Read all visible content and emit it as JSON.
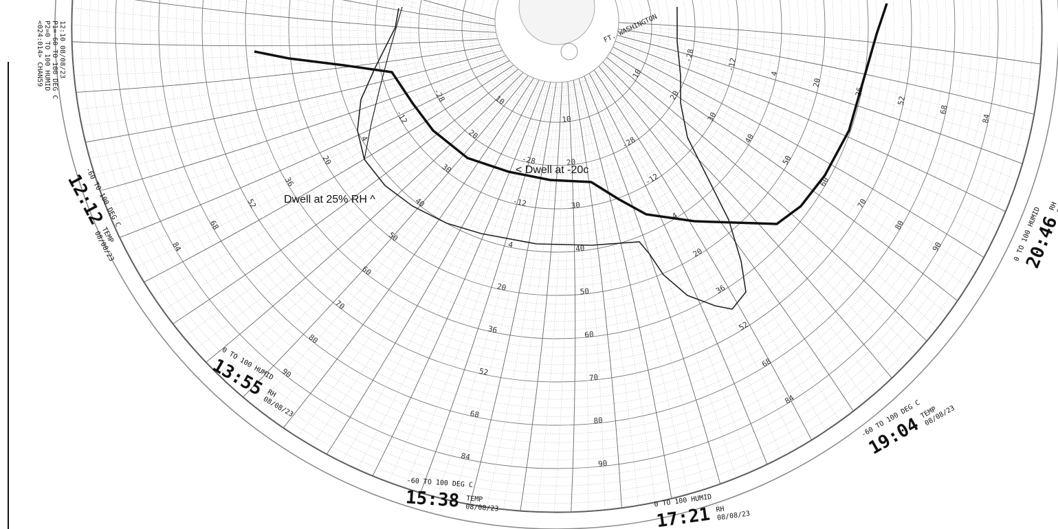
{
  "header": {
    "lines": [
      "12:10 08/08/23",
      "P1=-60 TO 100 DEG C",
      "P2=0 TO 100 HUMID",
      "<024:014> CHAN59"
    ]
  },
  "brand": {
    "location": "FT. WASHINGTON"
  },
  "annotations": [
    "< Dwell at -20c",
    "Dwell at 25% RH ^"
  ],
  "temp_scale": [
    "-28",
    "-12",
    "4",
    "20",
    "36",
    "52",
    "68",
    "84"
  ],
  "rh_scale": [
    "10",
    "20",
    "30",
    "40",
    "50",
    "60",
    "70",
    "80",
    "90"
  ],
  "time_labels": [
    {
      "time": "12:12",
      "type": "TEMP",
      "date": "08/08/23",
      "range": "-60 TO 100 DEG C"
    },
    {
      "time": "13:55",
      "type": "RH",
      "date": "08/08/23",
      "range": "0 TO 100 HUMID"
    },
    {
      "time": "15:38",
      "type": "TEMP",
      "date": "08/08/23",
      "range": "-60 TO 100 DEG C"
    },
    {
      "time": "17:21",
      "type": "RH",
      "date": "08/08/23",
      "range": "0 TO 100 HUMID"
    },
    {
      "time": "19:04",
      "type": "TEMP",
      "date": "08/08/23",
      "range": "-60 TO 100 DEG C"
    },
    {
      "time": "20:46",
      "type": "RH",
      "date": "08/08/23",
      "range": "0 TO 100 HUMID"
    }
  ]
}
